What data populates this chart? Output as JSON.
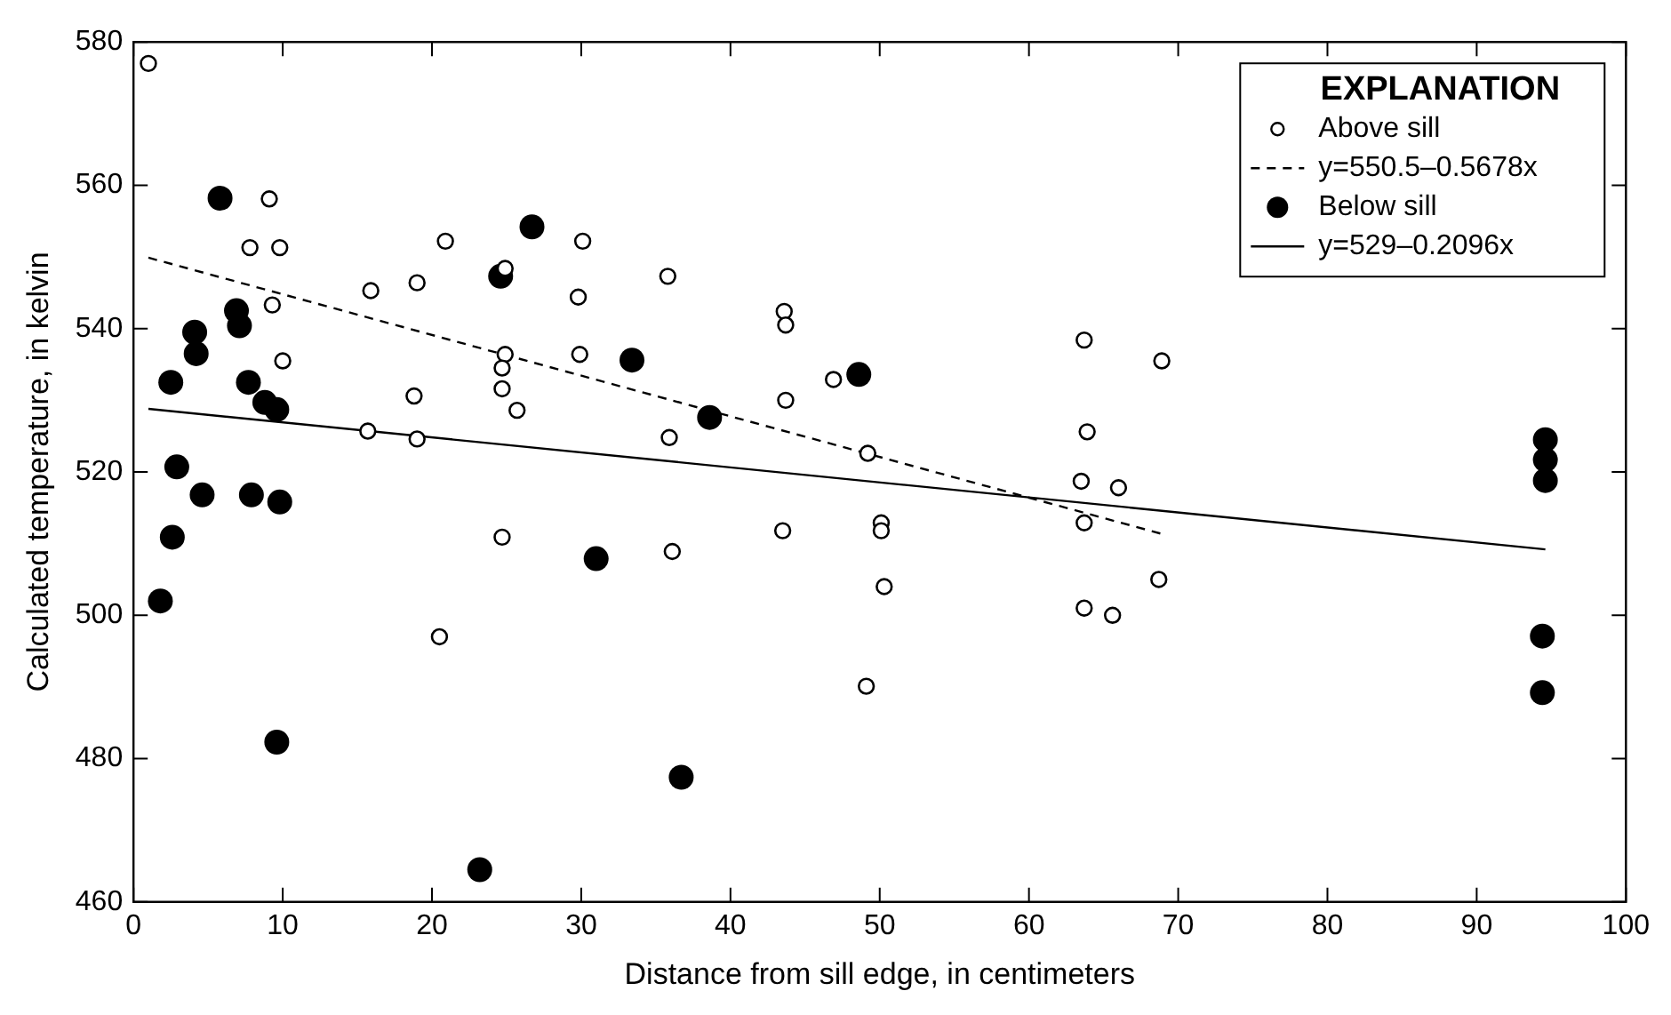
{
  "chart_data": {
    "type": "scatter",
    "xlabel": "Distance from sill edge, in centimeters",
    "ylabel": "Calculated temperature, in kelvin",
    "legend_title": "EXPLANATION",
    "legend": "top right",
    "grid": false,
    "marker": "circle",
    "xlim": [
      0,
      100
    ],
    "xticks": [
      0,
      10,
      20,
      30,
      40,
      50,
      60,
      70,
      80,
      90,
      100
    ],
    "ylim": [
      460,
      580
    ],
    "yticks": [
      460,
      480,
      500,
      520,
      540,
      560,
      580
    ],
    "series": [
      {
        "name": "Above sill",
        "color": "#ffffff",
        "x": [
          1.0,
          9.1,
          7.8,
          9.8,
          20.9,
          30.1,
          24.9,
          15.9,
          19.0,
          29.8,
          9.3,
          10.0,
          24.9,
          24.7,
          24.7,
          25.7,
          18.8,
          29.9,
          15.7,
          19.0,
          24.7,
          20.5,
          35.8,
          43.6,
          43.7,
          46.9,
          43.7,
          35.9,
          49.2,
          63.7,
          68.9,
          63.9,
          63.5,
          66.0,
          63.7,
          50.1,
          50.1,
          43.5,
          36.1,
          50.3,
          68.7,
          63.7,
          65.6,
          49.1
        ],
        "values": [
          577,
          558.1,
          551.3,
          551.3,
          552.2,
          552.2,
          548.4,
          545.3,
          546.4,
          544.4,
          543.3,
          535.5,
          536.4,
          534.5,
          531.6,
          528.6,
          530.6,
          536.4,
          525.7,
          524.6,
          510.9,
          497.0,
          547.3,
          542.4,
          540.5,
          532.9,
          530.0,
          524.8,
          522.6,
          538.4,
          535.5,
          525.6,
          518.7,
          517.8,
          512.9,
          512.9,
          511.8,
          511.8,
          508.9,
          504.0,
          505.0,
          501.0,
          500.0,
          490.1
        ]
      },
      {
        "name": "y=550.5–0.5678x",
        "type": "line",
        "color": "#000000",
        "line_style": "dashed",
        "marker": "none",
        "x": [
          1,
          69
        ],
        "values": [
          549.9,
          511.3
        ]
      },
      {
        "name": "Below sill",
        "color": "#000000",
        "x": [
          5.8,
          26.7,
          24.6,
          6.9,
          7.1,
          4.1,
          4.2,
          33.4,
          2.5,
          7.7,
          8.8,
          9.6,
          2.9,
          4.6,
          7.9,
          9.8,
          2.6,
          1.8,
          9.6,
          23.2,
          31.0,
          48.6,
          38.6,
          36.7,
          94.6,
          94.6,
          94.6,
          94.4,
          94.4
        ],
        "values": [
          558.2,
          554.2,
          547.3,
          542.5,
          540.4,
          539.5,
          536.5,
          535.6,
          532.5,
          532.5,
          529.7,
          528.7,
          520.7,
          516.8,
          516.8,
          515.8,
          510.9,
          502.0,
          482.3,
          464.5,
          507.9,
          533.6,
          527.6,
          477.4,
          524.5,
          521.7,
          518.8,
          497.1,
          489.2
        ]
      },
      {
        "name": "y=529–0.2096x",
        "type": "line",
        "color": "#000000",
        "line_style": "solid",
        "marker": "none",
        "x": [
          1,
          94.6
        ],
        "values": [
          528.8,
          509.2
        ]
      }
    ]
  }
}
